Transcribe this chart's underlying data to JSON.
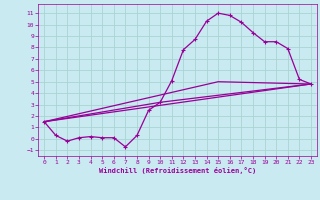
{
  "xlabel": "Windchill (Refroidissement éolien,°C)",
  "bg_color": "#c8eaf0",
  "grid_color": "#aad4d4",
  "line_color": "#990099",
  "x_ticks": [
    0,
    1,
    2,
    3,
    4,
    5,
    6,
    7,
    8,
    9,
    10,
    11,
    12,
    13,
    14,
    15,
    16,
    17,
    18,
    19,
    20,
    21,
    22,
    23
  ],
  "y_ticks": [
    -1,
    0,
    1,
    2,
    3,
    4,
    5,
    6,
    7,
    8,
    9,
    10,
    11
  ],
  "xlim": [
    -0.5,
    23.5
  ],
  "ylim": [
    -1.5,
    11.8
  ],
  "curve1_x": [
    0,
    1,
    2,
    3,
    4,
    5,
    6,
    7,
    8,
    9,
    10,
    11,
    12,
    13,
    14,
    15,
    16,
    17,
    18,
    19,
    20,
    21,
    22,
    23
  ],
  "curve1_y": [
    1.5,
    0.3,
    -0.2,
    0.1,
    0.2,
    0.1,
    0.1,
    -0.7,
    0.3,
    2.5,
    3.2,
    5.1,
    7.8,
    8.7,
    10.3,
    11.0,
    10.8,
    10.2,
    9.3,
    8.5,
    8.5,
    7.9,
    5.2,
    4.8
  ],
  "curve2_x": [
    0,
    23
  ],
  "curve2_y": [
    1.5,
    4.8
  ],
  "curve3_x": [
    0,
    10,
    23
  ],
  "curve3_y": [
    1.5,
    3.2,
    4.8
  ],
  "curve4_x": [
    0,
    15,
    23
  ],
  "curve4_y": [
    1.5,
    5.0,
    4.8
  ]
}
